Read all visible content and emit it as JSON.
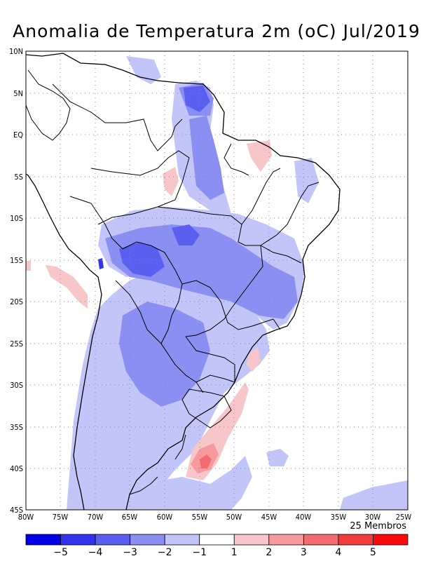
{
  "title": "Anomalia de Temperatura 2m (oC) Jul/2019",
  "members_label": "25 Membros",
  "lat_ticks": [
    "10N",
    "5N",
    "EQ",
    "5S",
    "10S",
    "15S",
    "20S",
    "25S",
    "30S",
    "35S",
    "40S",
    "45S"
  ],
  "lon_ticks": [
    "80W",
    "75W",
    "70W",
    "65W",
    "60W",
    "55W",
    "50W",
    "45W",
    "40W",
    "35W",
    "30W",
    "25W"
  ],
  "colorbar": {
    "colors": [
      "#0000e6",
      "#3333ee",
      "#5a5ff0",
      "#8c8ff2",
      "#c2c5f7",
      "#ffffff",
      "#f7c6c9",
      "#f79a9d",
      "#f26b6f",
      "#f23c3c",
      "#fa0a0a"
    ],
    "labels": [
      "-5",
      "-4",
      "-3",
      "-2",
      "-1",
      "1",
      "2",
      "3",
      "4",
      "5"
    ]
  },
  "colors": {
    "land_line": "#000000",
    "grid": "#888888"
  }
}
